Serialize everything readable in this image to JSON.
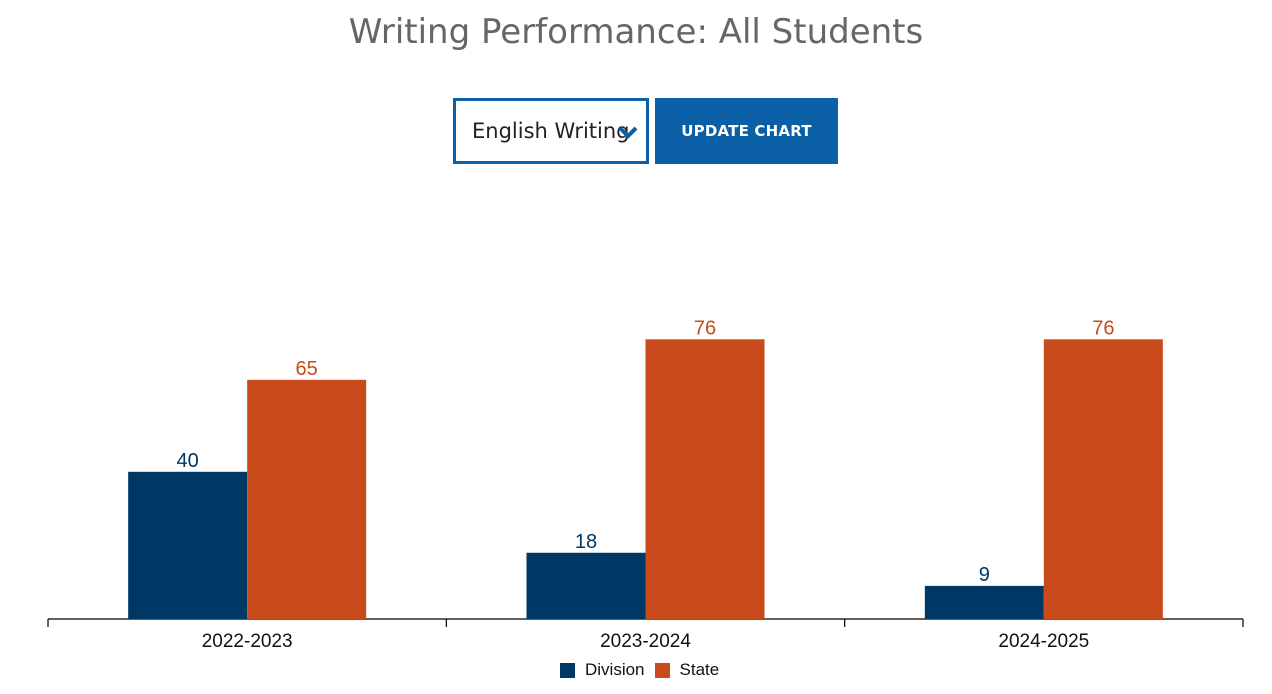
{
  "title": "Writing Performance: All Students",
  "controls": {
    "select_value": "English Writing",
    "update_label": "UPDATE CHART"
  },
  "colors": {
    "division": "#003865",
    "state": "#c94a1a",
    "accent": "#0a5fa6"
  },
  "icons": {
    "dropdown": "chevron-down-icon"
  },
  "chart_data": {
    "type": "bar",
    "title": "Writing Performance: All Students",
    "categories": [
      "2022-2023",
      "2023-2024",
      "2024-2025"
    ],
    "series": [
      {
        "name": "Division",
        "values": [
          40,
          18,
          9
        ],
        "color": "#003865"
      },
      {
        "name": "State",
        "values": [
          65,
          76,
          76
        ],
        "color": "#c94a1a"
      }
    ],
    "ylim": [
      0,
      100
    ],
    "grid": false,
    "legend": "bottom-center",
    "xlabel": "",
    "ylabel": ""
  }
}
